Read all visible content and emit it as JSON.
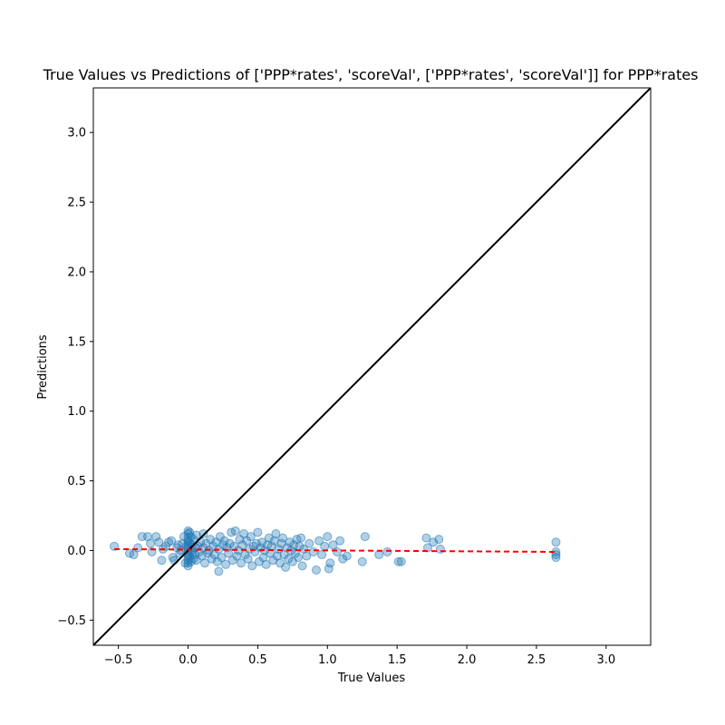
{
  "chart_data": {
    "type": "scatter",
    "title": "True Values vs Predictions of ['PPP*rates', 'scoreVal', ['PPP*rates', 'scoreVal']] for PPP*rates",
    "xlabel": "True Values",
    "ylabel": "Predictions",
    "xlim": [
      -0.68,
      3.32
    ],
    "ylim": [
      -0.68,
      3.32
    ],
    "xticks": [
      -0.5,
      0.0,
      0.5,
      1.0,
      1.5,
      2.0,
      2.5,
      3.0
    ],
    "yticks": [
      -0.5,
      0.0,
      0.5,
      1.0,
      1.5,
      2.0,
      2.5,
      3.0
    ],
    "xtick_labels": [
      "−0.5",
      "0.0",
      "0.5",
      "1.0",
      "1.5",
      "2.0",
      "2.5",
      "3.0"
    ],
    "ytick_labels": [
      "−0.5",
      "0.0",
      "0.5",
      "1.0",
      "1.5",
      "2.0",
      "2.5",
      "3.0"
    ],
    "grid": false,
    "colors": {
      "points": "#1f77b4",
      "identity_line": "#000000",
      "fit_line": "#ff0000"
    },
    "identity_line": {
      "x": [
        -0.68,
        3.32
      ],
      "y": [
        -0.68,
        3.32
      ]
    },
    "fit_line": {
      "x": [
        -0.53,
        2.64
      ],
      "y": [
        0.01,
        -0.01
      ]
    },
    "series": [
      {
        "values": [
          [
            -0.53,
            0.03
          ],
          [
            -0.42,
            -0.02
          ],
          [
            -0.39,
            -0.03
          ],
          [
            -0.36,
            0.02
          ],
          [
            -0.33,
            0.1
          ],
          [
            -0.29,
            0.1
          ],
          [
            -0.27,
            0.05
          ],
          [
            -0.26,
            -0.01
          ],
          [
            -0.23,
            0.1
          ],
          [
            -0.21,
            0.06
          ],
          [
            -0.19,
            -0.07
          ],
          [
            -0.18,
            0.01
          ],
          [
            -0.16,
            0.03
          ],
          [
            -0.14,
            0.06
          ],
          [
            -0.12,
            0.07
          ],
          [
            -0.11,
            -0.05
          ],
          [
            -0.1,
            -0.07
          ],
          [
            -0.08,
            0.02
          ],
          [
            -0.07,
            0.04
          ],
          [
            -0.06,
            -0.02
          ],
          [
            -0.05,
            0.0
          ],
          [
            -0.04,
            0.05
          ],
          [
            -0.03,
            0.1
          ],
          [
            -0.02,
            -0.09
          ],
          [
            -0.01,
            0.03
          ],
          [
            0.0,
            0.14
          ],
          [
            0.0,
            0.12
          ],
          [
            0.0,
            0.09
          ],
          [
            0.0,
            0.07
          ],
          [
            0.0,
            0.05
          ],
          [
            0.0,
            0.03
          ],
          [
            0.0,
            0.01
          ],
          [
            0.0,
            -0.01
          ],
          [
            0.0,
            -0.03
          ],
          [
            0.0,
            -0.05
          ],
          [
            0.0,
            -0.07
          ],
          [
            0.0,
            -0.09
          ],
          [
            0.0,
            -0.11
          ],
          [
            0.01,
            0.13
          ],
          [
            0.01,
            0.06
          ],
          [
            0.01,
            -0.04
          ],
          [
            0.02,
            0.1
          ],
          [
            0.02,
            0.0
          ],
          [
            0.02,
            -0.08
          ],
          [
            0.03,
            0.04
          ],
          [
            0.03,
            -0.02
          ],
          [
            0.04,
            0.08
          ],
          [
            0.04,
            -0.06
          ],
          [
            0.05,
            0.02
          ],
          [
            0.05,
            -0.03
          ],
          [
            0.06,
            0.11
          ],
          [
            0.06,
            -0.07
          ],
          [
            0.07,
            0.03
          ],
          [
            0.08,
            -0.01
          ],
          [
            0.09,
            0.06
          ],
          [
            0.1,
            -0.04
          ],
          [
            0.11,
            0.12
          ],
          [
            0.11,
            0.02
          ],
          [
            0.12,
            -0.09
          ],
          [
            0.13,
            0.05
          ],
          [
            0.14,
            -0.02
          ],
          [
            0.15,
            0.0
          ],
          [
            0.16,
            0.08
          ],
          [
            0.17,
            -0.06
          ],
          [
            0.18,
            0.03
          ],
          [
            0.19,
            -0.03
          ],
          [
            0.2,
            0.06
          ],
          [
            0.21,
            -0.08
          ],
          [
            0.22,
            0.01
          ],
          [
            0.22,
            -0.15
          ],
          [
            0.23,
            0.1
          ],
          [
            0.24,
            -0.05
          ],
          [
            0.25,
            0.04
          ],
          [
            0.26,
            0.07
          ],
          [
            0.27,
            -0.1
          ],
          [
            0.28,
            0.02
          ],
          [
            0.29,
            -0.02
          ],
          [
            0.3,
            0.05
          ],
          [
            0.31,
            0.13
          ],
          [
            0.32,
            -0.07
          ],
          [
            0.33,
            0.03
          ],
          [
            0.34,
            0.14
          ],
          [
            0.35,
            -0.04
          ],
          [
            0.36,
            0.0
          ],
          [
            0.37,
            0.08
          ],
          [
            0.38,
            -0.09
          ],
          [
            0.39,
            0.04
          ],
          [
            0.4,
            0.12
          ],
          [
            0.41,
            -0.03
          ],
          [
            0.42,
            0.07
          ],
          [
            0.43,
            -0.06
          ],
          [
            0.44,
            0.01
          ],
          [
            0.45,
            0.1
          ],
          [
            0.46,
            -0.11
          ],
          [
            0.47,
            0.03
          ],
          [
            0.48,
            -0.01
          ],
          [
            0.49,
            0.05
          ],
          [
            0.5,
            0.13
          ],
          [
            0.51,
            -0.08
          ],
          [
            0.52,
            0.02
          ],
          [
            0.53,
            0.06
          ],
          [
            0.54,
            -0.05
          ],
          [
            0.55,
            0.0
          ],
          [
            0.56,
            -0.1
          ],
          [
            0.57,
            0.04
          ],
          [
            0.58,
            0.09
          ],
          [
            0.59,
            -0.02
          ],
          [
            0.6,
            0.03
          ],
          [
            0.61,
            -0.07
          ],
          [
            0.62,
            0.07
          ],
          [
            0.63,
            0.12
          ],
          [
            0.64,
            -0.04
          ],
          [
            0.65,
            0.01
          ],
          [
            0.66,
            -0.09
          ],
          [
            0.67,
            0.05
          ],
          [
            0.68,
            0.09
          ],
          [
            0.69,
            -0.03
          ],
          [
            0.7,
            -0.12
          ],
          [
            0.71,
            0.02
          ],
          [
            0.72,
            -0.06
          ],
          [
            0.73,
            0.06
          ],
          [
            0.74,
            0.0
          ],
          [
            0.75,
            -0.08
          ],
          [
            0.76,
            0.04
          ],
          [
            0.77,
            -0.02
          ],
          [
            0.78,
            0.08
          ],
          [
            0.79,
            -0.05
          ],
          [
            0.8,
            0.03
          ],
          [
            0.81,
            0.09
          ],
          [
            0.82,
            -0.11
          ],
          [
            0.83,
            0.01
          ],
          [
            0.85,
            -0.04
          ],
          [
            0.87,
            0.05
          ],
          [
            0.9,
            -0.01
          ],
          [
            0.92,
            -0.14
          ],
          [
            0.94,
            0.07
          ],
          [
            0.96,
            -0.03
          ],
          [
            0.98,
            0.03
          ],
          [
            1.0,
            0.1
          ],
          [
            1.01,
            -0.13
          ],
          [
            1.02,
            -0.09
          ],
          [
            1.04,
            0.04
          ],
          [
            1.07,
            -0.01
          ],
          [
            1.09,
            0.07
          ],
          [
            1.11,
            -0.06
          ],
          [
            1.14,
            -0.04
          ],
          [
            1.25,
            -0.08
          ],
          [
            1.27,
            0.1
          ],
          [
            1.37,
            -0.03
          ],
          [
            1.43,
            -0.01
          ],
          [
            1.51,
            -0.08
          ],
          [
            1.53,
            -0.08
          ],
          [
            1.71,
            0.09
          ],
          [
            1.72,
            0.02
          ],
          [
            1.76,
            0.06
          ],
          [
            1.8,
            0.08
          ],
          [
            1.81,
            0.01
          ],
          [
            2.64,
            0.06
          ],
          [
            2.64,
            -0.01
          ],
          [
            2.64,
            -0.03
          ],
          [
            2.64,
            -0.05
          ]
        ]
      }
    ]
  }
}
